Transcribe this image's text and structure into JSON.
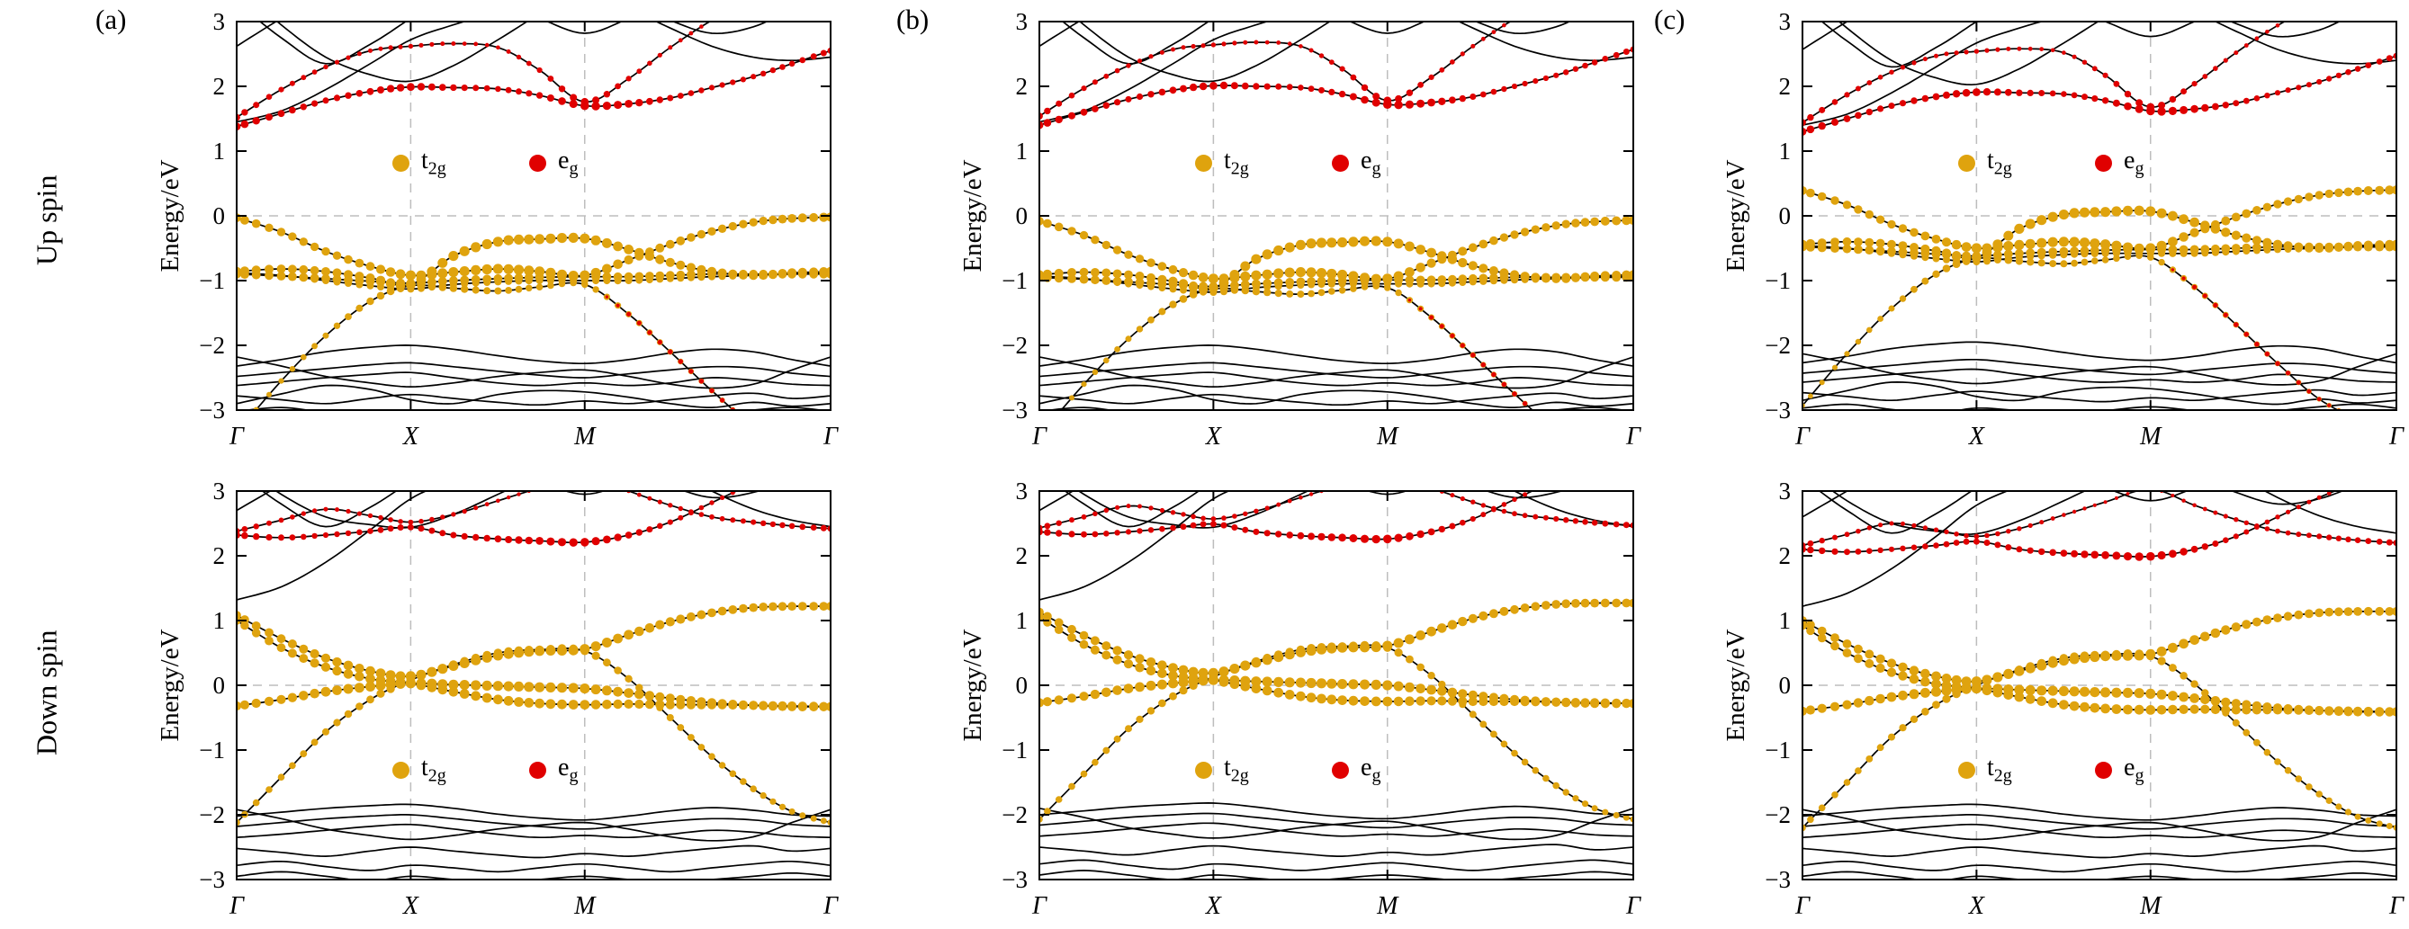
{
  "figure": {
    "panel_labels": [
      "(a)",
      "(b)",
      "(c)"
    ],
    "row_labels": [
      "Up spin",
      "Down spin"
    ]
  },
  "legend": {
    "items": [
      {
        "id": "t2g",
        "main": "t",
        "sub": "2g",
        "color": "#DFA30E"
      },
      {
        "id": "eg",
        "main": "e",
        "sub": "g",
        "color": "#E00000"
      }
    ]
  },
  "colors": {
    "band": "#000000",
    "grid": "#bdbdbd",
    "t2g": "#DFA30E",
    "eg": "#E00000"
  },
  "chart_data": {
    "type": "line",
    "axis": {
      "ylabel": "Energy/eV",
      "ylim": [
        -3,
        3
      ],
      "yticks": [
        {
          "v": 3,
          "label": "3"
        },
        {
          "v": 2,
          "label": "2"
        },
        {
          "v": 1,
          "label": "1"
        },
        {
          "v": 0,
          "label": "0"
        },
        {
          "v": -1,
          "label": "−1"
        },
        {
          "v": -2,
          "label": "−2"
        },
        {
          "v": -3,
          "label": "−3"
        }
      ],
      "kpoints": [
        {
          "x": 0,
          "label": "Γ"
        },
        {
          "x": 0.293,
          "label": "X"
        },
        {
          "x": 0.586,
          "label": "M"
        },
        {
          "x": 1,
          "label": "Γ"
        }
      ],
      "grid": "dashed at X, M and E=0"
    },
    "control_x": [
      0,
      0.075,
      0.15,
      0.225,
      0.293,
      0.365,
      0.44,
      0.51,
      0.586,
      0.66,
      0.73,
      0.8,
      0.87,
      0.935,
      1
    ],
    "band_sets": {
      "up": [
        {
          "group": "op",
          "y": [
            -2.32,
            -2.22,
            -2.1,
            -2.03,
            -2.0,
            -2.06,
            -2.16,
            -2.24,
            -2.28,
            -2.22,
            -2.12,
            -2.06,
            -2.1,
            -2.22,
            -2.32
          ]
        },
        {
          "group": "op",
          "y": [
            -2.48,
            -2.42,
            -2.36,
            -2.3,
            -2.27,
            -2.33,
            -2.4,
            -2.46,
            -2.5,
            -2.44,
            -2.38,
            -2.33,
            -2.35,
            -2.43,
            -2.48
          ]
        },
        {
          "group": "op",
          "y": [
            -2.62,
            -2.56,
            -2.5,
            -2.45,
            -2.42,
            -2.5,
            -2.58,
            -2.62,
            -2.58,
            -2.62,
            -2.58,
            -2.5,
            -2.54,
            -2.6,
            -2.62
          ]
        },
        {
          "group": "op",
          "y": [
            -2.78,
            -2.84,
            -2.9,
            -2.82,
            -2.76,
            -2.82,
            -2.88,
            -2.92,
            -2.86,
            -2.9,
            -2.84,
            -2.78,
            -2.74,
            -2.82,
            -2.78
          ]
        },
        {
          "group": "op",
          "y": [
            -3.02,
            -2.96,
            -3.04,
            -3.1,
            -3.02,
            -3.06,
            -3.12,
            -3.06,
            -3.0,
            -3.06,
            -3.12,
            -3.06,
            -3.0,
            -2.96,
            -3.02
          ]
        },
        {
          "group": "op",
          "y": [
            -2.18,
            -2.32,
            -2.48,
            -2.58,
            -2.64,
            -2.58,
            -2.48,
            -2.42,
            -2.38,
            -2.48,
            -2.6,
            -2.66,
            -2.6,
            -2.38,
            -2.18
          ]
        },
        {
          "group": "op",
          "y": [
            -2.9,
            -2.75,
            -2.62,
            -2.68,
            -2.84,
            -2.9,
            -2.76,
            -2.7,
            -2.72,
            -2.8,
            -2.9,
            -2.96,
            -2.88,
            -2.94,
            -2.9
          ]
        },
        {
          "group": "t2g",
          "y": [
            -0.03,
            -0.25,
            -0.55,
            -0.78,
            -0.92,
            -0.87,
            -0.82,
            -0.86,
            -0.92,
            -0.68,
            -0.44,
            -0.24,
            -0.1,
            -0.04,
            -0.02
          ],
          "t2g": [
            0.85,
            0.8,
            0.8,
            0.85,
            1,
            1,
            1,
            1,
            1,
            0.9,
            0.85,
            0.8,
            0.8,
            0.85,
            0.9
          ]
        },
        {
          "group": "t2g",
          "y": [
            -0.86,
            -0.82,
            -0.86,
            -0.96,
            -1.06,
            -0.62,
            -0.4,
            -0.36,
            -0.35,
            -0.52,
            -0.72,
            -0.86,
            -0.92,
            -0.88,
            -0.86
          ],
          "t2g": [
            0.9,
            0.85,
            0.85,
            0.9,
            0.95,
            1,
            1,
            1,
            1,
            0.95,
            0.9,
            0.9,
            0.9,
            0.9,
            0.9
          ]
        },
        {
          "group": "t2g",
          "y": [
            -0.9,
            -0.93,
            -0.97,
            -1.01,
            -1.04,
            -1.0,
            -0.97,
            -0.95,
            -0.94,
            -0.94,
            -0.92,
            -0.9,
            -0.9,
            -0.9,
            -0.9
          ],
          "t2g": [
            0.85,
            0.85,
            0.85,
            0.85,
            0.85,
            0.85,
            0.85,
            0.85,
            0.85,
            0.85,
            0.85,
            0.85,
            0.85,
            0.85,
            0.85
          ]
        },
        {
          "group": "t2g",
          "y": [
            -0.88,
            -0.92,
            -1.0,
            -1.08,
            -1.13,
            -1.06,
            -1.02,
            -1.0,
            -1.0,
            -1.0,
            -0.97,
            -0.94,
            -0.92,
            -0.9,
            -0.88
          ],
          "t2g": [
            0.65,
            0.65,
            0.65,
            0.65,
            0.65,
            0.65,
            0.65,
            0.65,
            0.65,
            0.65,
            0.65,
            0.65,
            0.65,
            0.65,
            0.65
          ]
        },
        {
          "group": "t2g",
          "y": [
            -3.35,
            -2.55,
            -1.85,
            -1.32,
            -1.08,
            -1.12,
            -1.16,
            -1.1,
            -1.06,
            -1.52,
            -2.1,
            -2.7,
            -3.25,
            -3.55,
            -3.7
          ],
          "t2g": [
            0.4,
            0.45,
            0.55,
            0.7,
            0.8,
            0.7,
            0.65,
            0.6,
            0.6,
            0.55,
            0.5,
            0.45,
            0.4,
            0.35,
            0.3
          ],
          "eg": [
            0,
            0,
            0,
            0,
            0,
            0,
            0,
            0,
            0,
            0.35,
            0.4,
            0.4,
            0.3,
            0.15,
            0
          ]
        },
        {
          "group": "eg",
          "y": [
            1.38,
            1.58,
            1.78,
            1.92,
            1.99,
            1.98,
            1.96,
            1.86,
            1.7,
            1.73,
            1.82,
            1.98,
            2.15,
            2.35,
            2.55
          ],
          "eg": [
            0.8,
            0.7,
            0.6,
            0.7,
            0.8,
            0.65,
            0.55,
            0.65,
            0.9,
            0.8,
            0.6,
            0.5,
            0.5,
            0.55,
            0.6
          ]
        },
        {
          "group": "eg",
          "y": [
            1.52,
            1.95,
            2.3,
            2.55,
            2.62,
            2.66,
            2.6,
            2.25,
            1.76,
            2.12,
            2.6,
            3.02,
            3.35,
            3.55,
            3.65
          ],
          "eg": [
            0.7,
            0.5,
            0.4,
            0.35,
            0.4,
            0.35,
            0.3,
            0.5,
            0.8,
            0.5,
            0.35,
            0.3,
            0.25,
            0.2,
            0.2
          ]
        },
        {
          "group": "cond",
          "y": [
            3.55,
            2.95,
            2.45,
            2.18,
            2.08,
            2.32,
            2.72,
            3.12,
            3.52,
            3.3,
            3.02,
            2.82,
            2.92,
            3.2,
            3.5
          ]
        },
        {
          "group": "cond",
          "y": [
            2.62,
            3.05,
            3.45,
            3.72,
            3.88,
            3.6,
            3.3,
            3.05,
            2.82,
            3.05,
            3.35,
            3.65,
            3.85,
            3.95,
            4.0
          ]
        },
        {
          "group": "cond",
          "y": [
            1.45,
            1.62,
            1.95,
            2.35,
            2.72,
            2.95,
            3.15,
            3.35,
            3.45,
            3.2,
            2.9,
            2.62,
            2.45,
            2.4,
            2.45
          ]
        },
        {
          "group": "cond",
          "y": [
            3.3,
            2.75,
            2.35,
            2.65,
            3.05,
            3.45,
            3.85,
            4.1,
            4.2,
            4.0,
            3.7,
            3.45,
            3.5,
            3.7,
            3.9
          ]
        }
      ],
      "down": [
        {
          "group": "op",
          "y": [
            -2.02,
            -1.96,
            -1.9,
            -1.86,
            -1.84,
            -1.9,
            -1.99,
            -2.05,
            -2.08,
            -2.02,
            -1.94,
            -1.89,
            -1.93,
            -2.0,
            -2.02
          ]
        },
        {
          "group": "op",
          "y": [
            -2.18,
            -2.12,
            -2.06,
            -2.02,
            -2.0,
            -2.06,
            -2.13,
            -2.18,
            -2.22,
            -2.16,
            -2.1,
            -2.06,
            -2.08,
            -2.15,
            -2.18
          ]
        },
        {
          "group": "op",
          "y": [
            -2.35,
            -2.3,
            -2.24,
            -2.18,
            -2.15,
            -2.22,
            -2.3,
            -2.35,
            -2.32,
            -2.35,
            -2.3,
            -2.24,
            -2.27,
            -2.33,
            -2.35
          ]
        },
        {
          "group": "op",
          "y": [
            -2.52,
            -2.58,
            -2.64,
            -2.56,
            -2.5,
            -2.56,
            -2.62,
            -2.66,
            -2.6,
            -2.64,
            -2.58,
            -2.52,
            -2.48,
            -2.56,
            -2.52
          ]
        },
        {
          "group": "op",
          "y": [
            -2.78,
            -2.72,
            -2.8,
            -2.86,
            -2.78,
            -2.82,
            -2.88,
            -2.82,
            -2.76,
            -2.82,
            -2.88,
            -2.82,
            -2.76,
            -2.72,
            -2.78
          ]
        },
        {
          "group": "op",
          "y": [
            -1.92,
            -2.06,
            -2.22,
            -2.32,
            -2.38,
            -2.32,
            -2.22,
            -2.16,
            -2.12,
            -2.22,
            -2.34,
            -2.4,
            -2.34,
            -2.12,
            -1.92
          ]
        },
        {
          "group": "op",
          "y": [
            -2.95,
            -2.88,
            -2.95,
            -3.02,
            -2.95,
            -3.0,
            -3.05,
            -3.0,
            -2.95,
            -3.0,
            -3.05,
            -3.0,
            -2.95,
            -2.9,
            -2.95
          ]
        },
        {
          "group": "t2g",
          "y": [
            1.08,
            0.72,
            0.42,
            0.22,
            0.14,
            0.3,
            0.46,
            0.53,
            0.56,
            0.78,
            0.98,
            1.12,
            1.2,
            1.22,
            1.22
          ],
          "t2g": [
            0.85,
            0.85,
            0.9,
            0.95,
            1,
            1,
            1,
            1,
            1,
            0.95,
            0.9,
            0.85,
            0.85,
            0.85,
            0.85
          ]
        },
        {
          "group": "t2g",
          "y": [
            -0.32,
            -0.22,
            -0.1,
            -0.02,
            0.03,
            0.01,
            -0.01,
            -0.03,
            -0.05,
            -0.12,
            -0.2,
            -0.27,
            -0.31,
            -0.33,
            -0.33
          ],
          "t2g": [
            0.9,
            0.9,
            0.95,
            1,
            1,
            1,
            1,
            1,
            1,
            0.95,
            0.9,
            0.9,
            0.9,
            0.9,
            0.9
          ]
        },
        {
          "group": "t2g",
          "y": [
            1.0,
            0.58,
            0.28,
            0.1,
            0.03,
            -0.1,
            -0.22,
            -0.28,
            -0.3,
            -0.29,
            -0.3,
            -0.3,
            -0.31,
            -0.32,
            -0.33
          ],
          "t2g": [
            0.8,
            0.85,
            0.9,
            0.95,
            0.95,
            0.95,
            0.95,
            0.95,
            0.95,
            0.9,
            0.9,
            0.9,
            0.9,
            0.9,
            0.9
          ]
        },
        {
          "group": "t2g",
          "y": [
            -2.12,
            -1.42,
            -0.72,
            -0.22,
            0.08,
            0.32,
            0.5,
            0.55,
            0.53,
            0.1,
            -0.5,
            -1.1,
            -1.6,
            -1.95,
            -2.12
          ],
          "t2g": [
            0.6,
            0.6,
            0.65,
            0.75,
            0.85,
            0.8,
            0.8,
            0.8,
            0.8,
            0.7,
            0.65,
            0.6,
            0.6,
            0.55,
            0.55
          ]
        },
        {
          "group": "eg",
          "y": [
            2.32,
            2.28,
            2.32,
            2.38,
            2.44,
            2.32,
            2.26,
            2.23,
            2.21,
            2.32,
            2.52,
            2.82,
            3.12,
            3.35,
            3.5
          ],
          "eg": [
            0.7,
            0.6,
            0.5,
            0.55,
            0.6,
            0.6,
            0.7,
            0.8,
            0.9,
            0.7,
            0.5,
            0.4,
            0.35,
            0.3,
            0.3
          ]
        },
        {
          "group": "eg",
          "y": [
            2.38,
            2.55,
            2.72,
            2.62,
            2.52,
            2.64,
            2.85,
            3.05,
            3.25,
            3.0,
            2.78,
            2.6,
            2.52,
            2.46,
            2.42
          ],
          "eg": [
            0.6,
            0.45,
            0.35,
            0.4,
            0.45,
            0.4,
            0.3,
            0.25,
            0.2,
            0.3,
            0.4,
            0.45,
            0.5,
            0.55,
            0.6
          ]
        },
        {
          "group": "cond",
          "y": [
            3.45,
            2.95,
            2.6,
            2.48,
            2.44,
            2.64,
            2.95,
            3.25,
            3.55,
            3.35,
            3.08,
            2.9,
            2.98,
            3.2,
            3.45
          ]
        },
        {
          "group": "cond",
          "y": [
            1.32,
            1.52,
            1.9,
            2.4,
            2.88,
            3.18,
            3.48,
            3.78,
            3.95,
            3.7,
            3.35,
            3.0,
            2.72,
            2.55,
            2.45
          ]
        },
        {
          "group": "cond",
          "y": [
            2.7,
            3.1,
            3.5,
            3.8,
            3.95,
            3.7,
            3.4,
            3.15,
            2.95,
            3.15,
            3.45,
            3.75,
            3.9,
            4.0,
            4.05
          ]
        },
        {
          "group": "cond",
          "y": [
            3.3,
            2.8,
            2.45,
            2.75,
            3.15,
            3.55,
            3.95,
            4.2,
            4.3,
            4.05,
            3.75,
            3.5,
            3.55,
            3.75,
            3.95
          ]
        }
      ]
    },
    "panels": [
      {
        "label": "(a)",
        "shifts": {
          "up": {
            "op": 0,
            "t2g": 0,
            "eg": 0,
            "cond": 0
          },
          "down": {
            "op": 0,
            "t2g": 0,
            "eg": 0,
            "cond": 0
          }
        }
      },
      {
        "label": "(b)",
        "shifts": {
          "up": {
            "op": 0,
            "t2g": -0.05,
            "eg": 0.02,
            "cond": 0
          },
          "down": {
            "op": 0.02,
            "t2g": 0.05,
            "eg": 0.05,
            "cond": 0
          }
        }
      },
      {
        "label": "(c)",
        "shifts": {
          "up": {
            "op": 0.05,
            "t2g": 0.42,
            "eg": -0.08,
            "cond": -0.05
          },
          "down": {
            "op": 0,
            "t2g": -0.08,
            "eg": -0.22,
            "cond": -0.1
          }
        }
      }
    ]
  }
}
